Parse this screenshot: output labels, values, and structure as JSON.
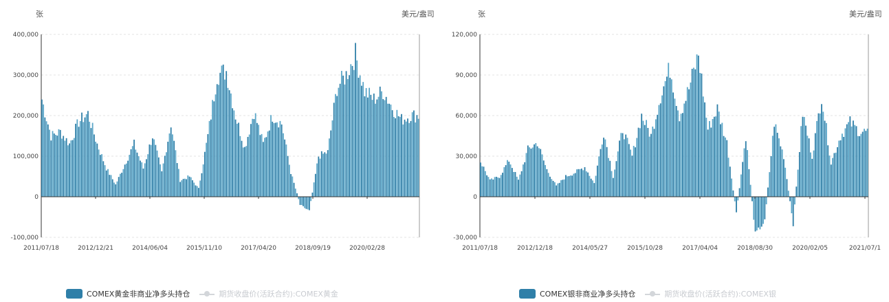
{
  "chart_data": [
    {
      "type": "bar",
      "y_unit_left": "张",
      "y_unit_right": "美元/盎司",
      "ylim": [
        -100000,
        400000
      ],
      "yticks": [
        "400,000",
        "300,000",
        "200,000",
        "100,000",
        "0",
        "-100,000"
      ],
      "ytick_values": [
        400000,
        300000,
        200000,
        100000,
        0,
        -100000
      ],
      "xticks": [
        "2011/07/18",
        "2012/12/21",
        "2014/06/04",
        "2015/11/10",
        "2017/04/20",
        "2018/09/19",
        "2020/02/28"
      ],
      "series": [
        {
          "name": "COMEX黄金非商业净多头持仓",
          "x": [
            "2011-07",
            "2011-10",
            "2012-01",
            "2012-04",
            "2012-07",
            "2012-10",
            "2013-01",
            "2013-04",
            "2013-07",
            "2013-10",
            "2014-01",
            "2014-04",
            "2014-07",
            "2014-10",
            "2015-01",
            "2015-04",
            "2015-07",
            "2015-10",
            "2016-01",
            "2016-04",
            "2016-07",
            "2016-10",
            "2017-01",
            "2017-04",
            "2017-07",
            "2017-10",
            "2018-01",
            "2018-04",
            "2018-07",
            "2018-10",
            "2019-01",
            "2019-04",
            "2019-07",
            "2019-10",
            "2020-01",
            "2020-04",
            "2020-07",
            "2020-10",
            "2021-01",
            "2021-04",
            "2021-07"
          ],
          "values": [
            240000,
            150000,
            160000,
            130000,
            185000,
            205000,
            130000,
            70000,
            30000,
            80000,
            130000,
            70000,
            150000,
            60000,
            180000,
            40000,
            50000,
            20000,
            150000,
            300000,
            310000,
            200000,
            120000,
            210000,
            130000,
            200000,
            180000,
            60000,
            -20000,
            -35000,
            100000,
            110000,
            270000,
            300000,
            350000,
            260000,
            240000,
            260000,
            220000,
            190000,
            200000
          ]
        },
        {
          "name": "期货收盘价(活跃合约):COMEX黄金"
        }
      ]
    },
    {
      "type": "bar",
      "y_unit_left": "张",
      "y_unit_right": "美元/盎司",
      "ylim": [
        -30000,
        120000
      ],
      "yticks": [
        "120,000",
        "90,000",
        "60,000",
        "30,000",
        "0",
        "-30,000"
      ],
      "ytick_values": [
        120000,
        90000,
        60000,
        30000,
        0,
        -30000
      ],
      "xticks": [
        "2011/07/18",
        "2012/12/18",
        "2014/05/27",
        "2015/10/28",
        "2017/04/04",
        "2018/08/30",
        "2020/02/05",
        "2021/07/1"
      ],
      "series": [
        {
          "name": "COMEX银非商业净多头持仓",
          "x": [
            "2011-07",
            "2011-10",
            "2012-01",
            "2012-04",
            "2012-07",
            "2012-10",
            "2013-01",
            "2013-04",
            "2013-07",
            "2013-10",
            "2014-01",
            "2014-04",
            "2014-07",
            "2014-10",
            "2015-01",
            "2015-04",
            "2015-07",
            "2015-10",
            "2016-01",
            "2016-04",
            "2016-07",
            "2016-10",
            "2017-01",
            "2017-04",
            "2017-07",
            "2017-10",
            "2018-01",
            "2018-04",
            "2018-07",
            "2018-10",
            "2019-01",
            "2019-04",
            "2019-07",
            "2019-10",
            "2020-01",
            "2020-04",
            "2020-07",
            "2020-10",
            "2021-01",
            "2021-04",
            "2021-07"
          ],
          "values": [
            26000,
            12000,
            15000,
            27000,
            12000,
            35000,
            40000,
            20000,
            8000,
            15000,
            18000,
            22000,
            10000,
            48000,
            15000,
            50000,
            30000,
            60000,
            45000,
            75000,
            95000,
            60000,
            80000,
            105000,
            50000,
            65000,
            40000,
            -12000,
            45000,
            -28000,
            -18000,
            55000,
            30000,
            -20000,
            62000,
            30000,
            75000,
            25000,
            45000,
            55000,
            48000
          ]
        },
        {
          "name": "期货收盘价(活跃合约):COMEX银"
        }
      ]
    }
  ],
  "colors": {
    "bar": "#2f7fa8",
    "bar_light": "#5aa6c8",
    "axis": "#333333",
    "grid": "#e3e3e3",
    "line_series": "#d3d6da"
  }
}
